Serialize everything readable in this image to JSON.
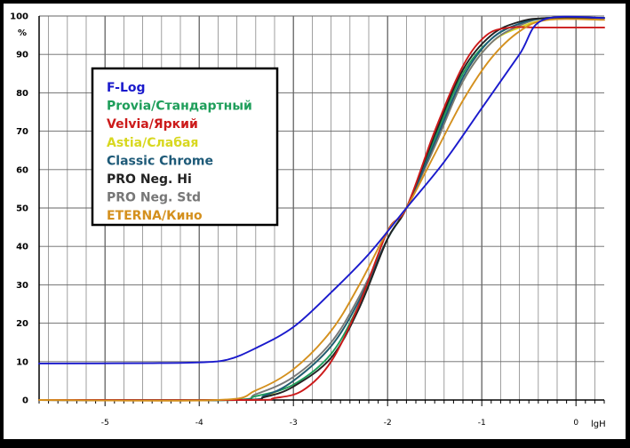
{
  "chart_data": {
    "type": "line",
    "xlabel": "lgH",
    "ylabel": "%",
    "xlim": [
      -5.7,
      0.3
    ],
    "ylim": [
      0,
      100
    ],
    "x_ticks": [
      -5,
      -4,
      -3,
      -2,
      -1,
      0
    ],
    "x_tick_labels": [
      "-5",
      "-4",
      "-3",
      "-2",
      "-1",
      "0"
    ],
    "y_ticks": [
      0,
      10,
      20,
      30,
      40,
      50,
      60,
      70,
      80,
      90,
      100
    ],
    "y_tick_labels": [
      "0",
      "10",
      "20",
      "30",
      "40",
      "50",
      "60",
      "70",
      "80",
      "90",
      "100"
    ],
    "grid": true,
    "legend": "top-left",
    "series": [
      {
        "name": "F-Log",
        "color": "#1a1acc",
        "points": [
          [
            -5.7,
            9.5
          ],
          [
            -4.5,
            9.6
          ],
          [
            -4.0,
            9.8
          ],
          [
            -3.7,
            10.5
          ],
          [
            -3.4,
            13.5
          ],
          [
            -3.0,
            19
          ],
          [
            -2.6,
            28
          ],
          [
            -2.2,
            38
          ],
          [
            -1.8,
            50
          ],
          [
            -1.4,
            62
          ],
          [
            -1.0,
            76
          ],
          [
            -0.6,
            90
          ],
          [
            -0.35,
            99
          ],
          [
            0.3,
            99.5
          ]
        ]
      },
      {
        "name": "Provia/Стандартный",
        "color": "#1e9e5a",
        "points": [
          [
            -5.7,
            0
          ],
          [
            -3.7,
            0
          ],
          [
            -3.4,
            1
          ],
          [
            -3.0,
            4
          ],
          [
            -2.6,
            12
          ],
          [
            -2.3,
            25
          ],
          [
            -2.0,
            42
          ],
          [
            -1.8,
            50
          ],
          [
            -1.5,
            68
          ],
          [
            -1.2,
            85
          ],
          [
            -0.9,
            94
          ],
          [
            -0.6,
            98
          ],
          [
            -0.3,
            99.5
          ],
          [
            0.3,
            99.5
          ]
        ]
      },
      {
        "name": "Velvia/Яркий",
        "color": "#cc1a1a",
        "points": [
          [
            -5.7,
            0
          ],
          [
            -3.5,
            0
          ],
          [
            -3.2,
            0.5
          ],
          [
            -2.9,
            2.5
          ],
          [
            -2.6,
            10
          ],
          [
            -2.3,
            25
          ],
          [
            -2.0,
            44
          ],
          [
            -1.8,
            50
          ],
          [
            -1.5,
            70
          ],
          [
            -1.2,
            87
          ],
          [
            -0.95,
            95
          ],
          [
            -0.7,
            97
          ],
          [
            -0.4,
            97
          ],
          [
            0.3,
            97
          ]
        ]
      },
      {
        "name": "Astia/Слабая",
        "color": "#d8d820",
        "points": [
          [
            -5.7,
            0
          ],
          [
            -3.6,
            0
          ],
          [
            -3.3,
            1
          ],
          [
            -3.0,
            5
          ],
          [
            -2.6,
            14
          ],
          [
            -2.3,
            26
          ],
          [
            -2.0,
            42
          ],
          [
            -1.8,
            50
          ],
          [
            -1.5,
            66
          ],
          [
            -1.2,
            83
          ],
          [
            -0.9,
            93
          ],
          [
            -0.6,
            97
          ],
          [
            -0.3,
            99
          ],
          [
            0.3,
            99.5
          ]
        ]
      },
      {
        "name": "Classic Chrome",
        "color": "#1e5a78",
        "points": [
          [
            -5.7,
            0
          ],
          [
            -3.6,
            0
          ],
          [
            -3.3,
            1.2
          ],
          [
            -3.0,
            5
          ],
          [
            -2.6,
            14
          ],
          [
            -2.3,
            26
          ],
          [
            -2.0,
            42
          ],
          [
            -1.8,
            50
          ],
          [
            -1.5,
            67
          ],
          [
            -1.2,
            84
          ],
          [
            -0.9,
            94
          ],
          [
            -0.6,
            98
          ],
          [
            -0.3,
            99.5
          ],
          [
            0.3,
            99.5
          ]
        ]
      },
      {
        "name": "PRO Neg. Hi",
        "color": "#222222",
        "points": [
          [
            -5.7,
            0
          ],
          [
            -3.6,
            0
          ],
          [
            -3.3,
            0.8
          ],
          [
            -3.0,
            3.5
          ],
          [
            -2.6,
            11
          ],
          [
            -2.3,
            24
          ],
          [
            -2.0,
            42
          ],
          [
            -1.8,
            50
          ],
          [
            -1.5,
            69
          ],
          [
            -1.2,
            86
          ],
          [
            -0.9,
            95
          ],
          [
            -0.6,
            98.5
          ],
          [
            -0.3,
            99.5
          ],
          [
            0.3,
            99.5
          ]
        ]
      },
      {
        "name": "PRO Neg. Std",
        "color": "#777777",
        "points": [
          [
            -5.7,
            0
          ],
          [
            -3.7,
            0
          ],
          [
            -3.4,
            1.5
          ],
          [
            -3.0,
            6
          ],
          [
            -2.6,
            15
          ],
          [
            -2.3,
            27
          ],
          [
            -2.0,
            42
          ],
          [
            -1.8,
            50
          ],
          [
            -1.5,
            66
          ],
          [
            -1.2,
            83
          ],
          [
            -0.9,
            93
          ],
          [
            -0.6,
            97.5
          ],
          [
            -0.3,
            99.5
          ],
          [
            0.3,
            99.5
          ]
        ]
      },
      {
        "name": "ETERNA/Кино",
        "color": "#d4901e",
        "points": [
          [
            -5.7,
            0
          ],
          [
            -3.8,
            0
          ],
          [
            -3.4,
            2.5
          ],
          [
            -3.0,
            8
          ],
          [
            -2.6,
            18
          ],
          [
            -2.3,
            30
          ],
          [
            -2.0,
            44
          ],
          [
            -1.8,
            50
          ],
          [
            -1.5,
            64
          ],
          [
            -1.2,
            78
          ],
          [
            -0.9,
            89
          ],
          [
            -0.6,
            96
          ],
          [
            -0.3,
            99
          ],
          [
            0.3,
            99
          ]
        ]
      }
    ]
  }
}
